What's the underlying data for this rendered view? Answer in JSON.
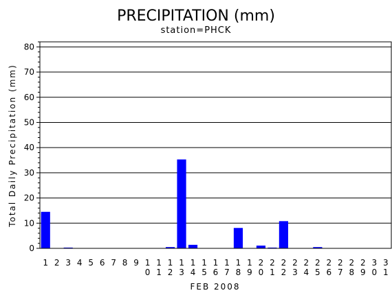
{
  "chart_data": {
    "type": "bar",
    "title": "PRECIPITATION (mm)",
    "subtitle": "station=PHCK",
    "xlabel": "FEB 2008",
    "ylabel": "Total Daily Precipitation (mm)",
    "ylim": [
      0,
      82
    ],
    "yticks": [
      0,
      10,
      20,
      30,
      40,
      50,
      60,
      70,
      80
    ],
    "grid": true,
    "categories": [
      "1",
      "2",
      "3",
      "4",
      "5",
      "6",
      "7",
      "8",
      "9",
      "10",
      "11",
      "12",
      "13",
      "14",
      "15",
      "16",
      "17",
      "18",
      "19",
      "20",
      "21",
      "22",
      "23",
      "24",
      "25",
      "26",
      "27",
      "28",
      "29",
      "30",
      "31"
    ],
    "values": [
      14.5,
      0,
      0.3,
      0,
      0,
      0,
      0,
      0,
      0,
      0,
      0,
      0.5,
      35.3,
      1.4,
      0,
      0,
      0,
      8.1,
      0,
      1.1,
      0.3,
      10.8,
      0,
      0,
      0.5,
      0,
      0,
      0,
      0,
      0,
      0
    ],
    "colors": {
      "bar": "#0000ff",
      "axis": "#000000",
      "grid": "#000000"
    }
  }
}
